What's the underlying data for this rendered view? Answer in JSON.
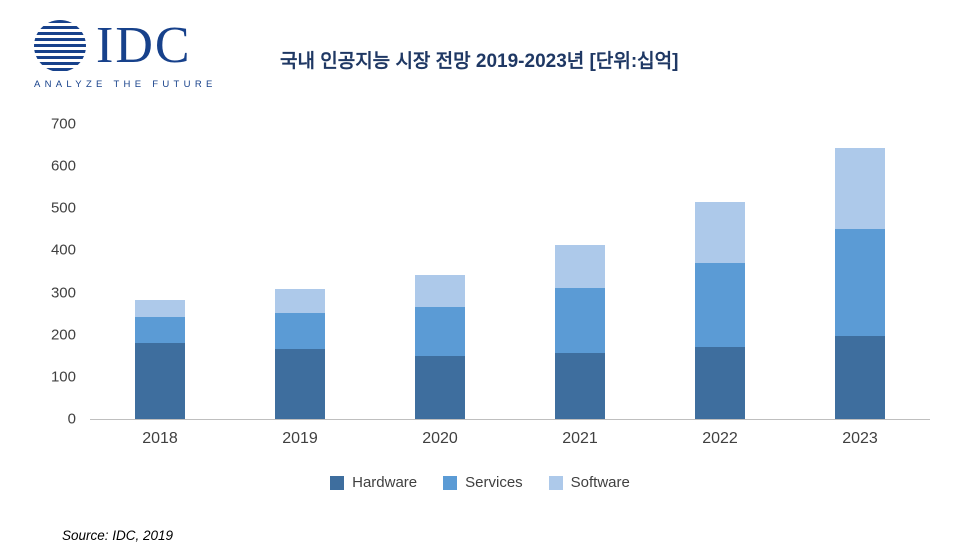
{
  "header": {
    "logo_text": "IDC",
    "logo_tagline": "ANALYZE THE FUTURE",
    "title": "국내 인공지능 시장 전망 2019-2023년 [단위:십억]"
  },
  "footer": {
    "source": "Source: IDC, 2019"
  },
  "chart_data": {
    "type": "bar",
    "stacked": true,
    "title": "국내 인공지능 시장 전망 2019-2023년 [단위:십억]",
    "categories": [
      "2018",
      "2019",
      "2020",
      "2021",
      "2022",
      "2023"
    ],
    "series": [
      {
        "name": "Hardware",
        "color": "#3E6E9E",
        "values": [
          180,
          167,
          150,
          157,
          170,
          197
        ]
      },
      {
        "name": "Services",
        "color": "#5B9BD5",
        "values": [
          62,
          85,
          115,
          153,
          200,
          255
        ]
      },
      {
        "name": "Software",
        "color": "#ADC9EA",
        "values": [
          41,
          56,
          76,
          104,
          144,
          192
        ]
      }
    ],
    "totals": [
      283,
      308,
      341,
      414,
      514,
      644
    ],
    "xlabel": "",
    "ylabel": "",
    "ylim": [
      0,
      700
    ],
    "yticks": [
      0,
      100,
      200,
      300,
      400,
      500,
      600,
      700
    ],
    "grid": false,
    "legend_position": "bottom"
  }
}
